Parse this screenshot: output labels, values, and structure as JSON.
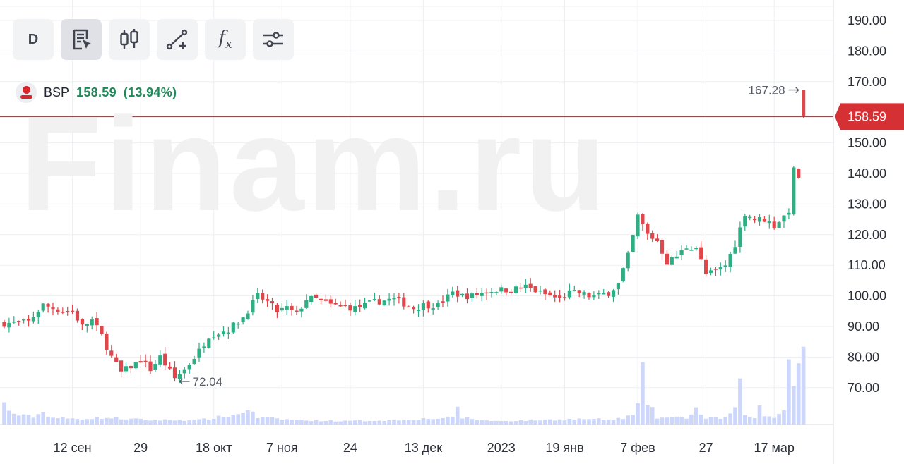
{
  "toolbar": {
    "interval_label": "D",
    "buttons": [
      {
        "name": "interval-button",
        "icon": "interval"
      },
      {
        "name": "chart-settings-button",
        "icon": "document-cursor-icon"
      },
      {
        "name": "candles-button",
        "icon": "candlestick-icon"
      },
      {
        "name": "drawing-tools-button",
        "icon": "line-plus-icon"
      },
      {
        "name": "indicators-button",
        "icon": "fx-icon"
      },
      {
        "name": "settings-sliders-button",
        "icon": "sliders-icon"
      }
    ],
    "fx_label": "f",
    "fx_sub": "x"
  },
  "legend": {
    "ticker": "BSP",
    "price": "158.59",
    "change": "(13.94%)"
  },
  "watermark": "Finam.ru",
  "colors": {
    "up": "#2fae84",
    "down": "#e2464a",
    "volume": "#cdd6fb",
    "price_line": "#d53135",
    "grid": "#eeeff2"
  },
  "chart_data": {
    "type": "candlestick",
    "ylim": [
      60,
      195
    ],
    "y_ticks": [
      "190.00",
      "180.00",
      "170.00",
      "150.00",
      "140.00",
      "130.00",
      "120.00",
      "110.00",
      "100.00",
      "90.00",
      "80.00",
      "70.00"
    ],
    "x_ticks": [
      {
        "label": "12 сен",
        "index": 14
      },
      {
        "label": "29",
        "index": 28
      },
      {
        "label": "18 окт",
        "index": 43
      },
      {
        "label": "7 ноя",
        "index": 57
      },
      {
        "label": "24",
        "index": 71
      },
      {
        "label": "13 дек",
        "index": 86
      },
      {
        "label": "2023",
        "index": 102
      },
      {
        "label": "19 янв",
        "index": 115
      },
      {
        "label": "7 фев",
        "index": 130
      },
      {
        "label": "27",
        "index": 144
      },
      {
        "label": "17 мар",
        "index": 158
      }
    ],
    "current_price": "158.59",
    "current_value": 158.59,
    "high_annotation": {
      "label": "167.28",
      "value": 167.28,
      "index": 164
    },
    "low_annotation": {
      "label": "72.04",
      "value": 72.04,
      "index": 35
    },
    "close_anchors": [
      [
        0,
        91
      ],
      [
        5,
        91.5
      ],
      [
        8,
        97
      ],
      [
        12,
        95
      ],
      [
        14,
        95
      ],
      [
        16,
        90
      ],
      [
        18,
        92
      ],
      [
        20,
        87
      ],
      [
        22,
        80
      ],
      [
        24,
        75
      ],
      [
        26,
        77
      ],
      [
        28,
        79
      ],
      [
        30,
        76
      ],
      [
        32,
        80
      ],
      [
        35,
        73
      ],
      [
        37,
        76
      ],
      [
        40,
        82
      ],
      [
        42,
        87
      ],
      [
        46,
        89
      ],
      [
        49,
        93
      ],
      [
        52,
        100
      ],
      [
        54,
        98
      ],
      [
        56,
        95
      ],
      [
        58,
        96
      ],
      [
        60,
        94
      ],
      [
        62,
        99
      ],
      [
        64,
        99
      ],
      [
        67,
        97
      ],
      [
        72,
        96
      ],
      [
        76,
        98
      ],
      [
        80,
        99
      ],
      [
        84,
        96
      ],
      [
        86,
        97
      ],
      [
        89,
        97
      ],
      [
        92,
        101
      ],
      [
        94,
        100
      ],
      [
        96,
        100
      ],
      [
        98,
        101
      ],
      [
        101,
        102
      ],
      [
        104,
        102
      ],
      [
        107,
        103
      ],
      [
        110,
        101
      ],
      [
        112,
        100
      ],
      [
        114,
        99
      ],
      [
        116,
        101
      ],
      [
        118,
        101
      ],
      [
        120,
        100
      ],
      [
        122,
        100
      ],
      [
        124,
        101
      ],
      [
        126,
        104
      ],
      [
        128,
        113
      ],
      [
        130,
        126
      ],
      [
        132,
        120
      ],
      [
        134,
        118
      ],
      [
        136,
        111
      ],
      [
        138,
        113
      ],
      [
        140,
        116
      ],
      [
        142,
        116
      ],
      [
        144,
        107
      ],
      [
        146,
        108
      ],
      [
        148,
        110
      ],
      [
        150,
        117
      ],
      [
        152,
        127
      ],
      [
        154,
        125
      ],
      [
        156,
        125
      ],
      [
        158,
        123
      ],
      [
        160,
        126
      ],
      [
        161,
        128
      ],
      [
        162,
        141
      ],
      [
        163,
        139
      ],
      [
        164,
        158.59
      ]
    ],
    "volume_anchors": [
      [
        0,
        0.18
      ],
      [
        1,
        0.12
      ],
      [
        3,
        0.08
      ],
      [
        6,
        0.07
      ],
      [
        8,
        0.11
      ],
      [
        10,
        0.06
      ],
      [
        14,
        0.05
      ],
      [
        20,
        0.06
      ],
      [
        30,
        0.04
      ],
      [
        40,
        0.04
      ],
      [
        48,
        0.09
      ],
      [
        50,
        0.14
      ],
      [
        52,
        0.06
      ],
      [
        60,
        0.04
      ],
      [
        70,
        0.03
      ],
      [
        80,
        0.04
      ],
      [
        92,
        0.06
      ],
      [
        93,
        0.16
      ],
      [
        94,
        0.06
      ],
      [
        100,
        0.03
      ],
      [
        110,
        0.04
      ],
      [
        120,
        0.05
      ],
      [
        125,
        0.04
      ],
      [
        129,
        0.08
      ],
      [
        130,
        0.17
      ],
      [
        131,
        0.46
      ],
      [
        132,
        0.2
      ],
      [
        134,
        0.06
      ],
      [
        140,
        0.06
      ],
      [
        142,
        0.14
      ],
      [
        144,
        0.05
      ],
      [
        148,
        0.06
      ],
      [
        150,
        0.13
      ],
      [
        151,
        0.35
      ],
      [
        152,
        0.1
      ],
      [
        154,
        0.05
      ],
      [
        155,
        0.16
      ],
      [
        156,
        0.08
      ],
      [
        158,
        0.06
      ],
      [
        160,
        0.15
      ],
      [
        161,
        0.56
      ],
      [
        162,
        0.36
      ],
      [
        163,
        0.54
      ],
      [
        164,
        0.58
      ]
    ]
  }
}
